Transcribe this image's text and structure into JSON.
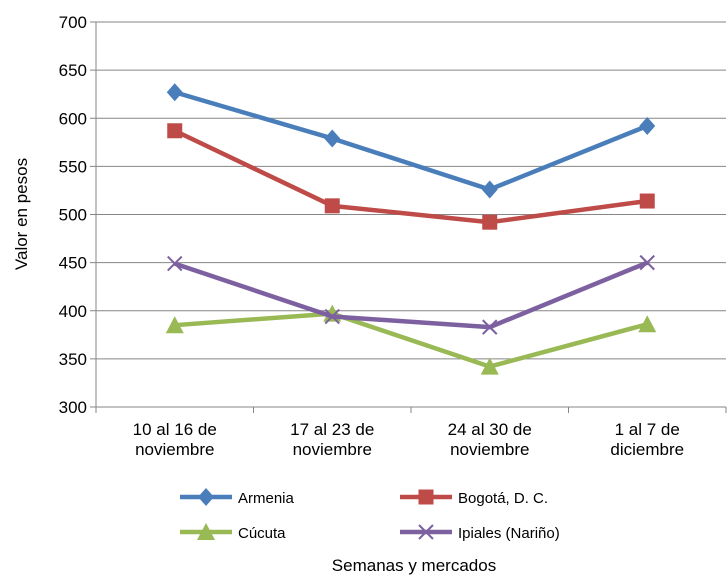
{
  "chart_data": {
    "type": "line",
    "categories": [
      [
        "10 al 16 de",
        "noviembre"
      ],
      [
        "17 al 23 de",
        "noviembre"
      ],
      [
        "24 al 30 de",
        "noviembre"
      ],
      [
        "1 al 7 de",
        "diciembre"
      ]
    ],
    "series": [
      {
        "name": "Armenia",
        "values": [
          627,
          579,
          526,
          592
        ],
        "color": "#4a7ebb",
        "marker": "diamond"
      },
      {
        "name": "Bogotá, D. C.",
        "values": [
          587,
          509,
          492,
          514
        ],
        "color": "#be4b48",
        "marker": "square"
      },
      {
        "name": "Cúcuta",
        "values": [
          385,
          397,
          342,
          386
        ],
        "color": "#98b954",
        "marker": "triangle"
      },
      {
        "name": "Ipiales (Nariño)",
        "values": [
          449,
          394,
          383,
          450
        ],
        "color": "#7d60a0",
        "marker": "x"
      }
    ],
    "xlabel": "Semanas y mercados",
    "ylabel": "Valor en pesos",
    "ylim": [
      300,
      700
    ],
    "yticks": [
      300,
      350,
      400,
      450,
      500,
      550,
      600,
      650,
      700
    ],
    "grid": true,
    "legend": "bottom"
  }
}
